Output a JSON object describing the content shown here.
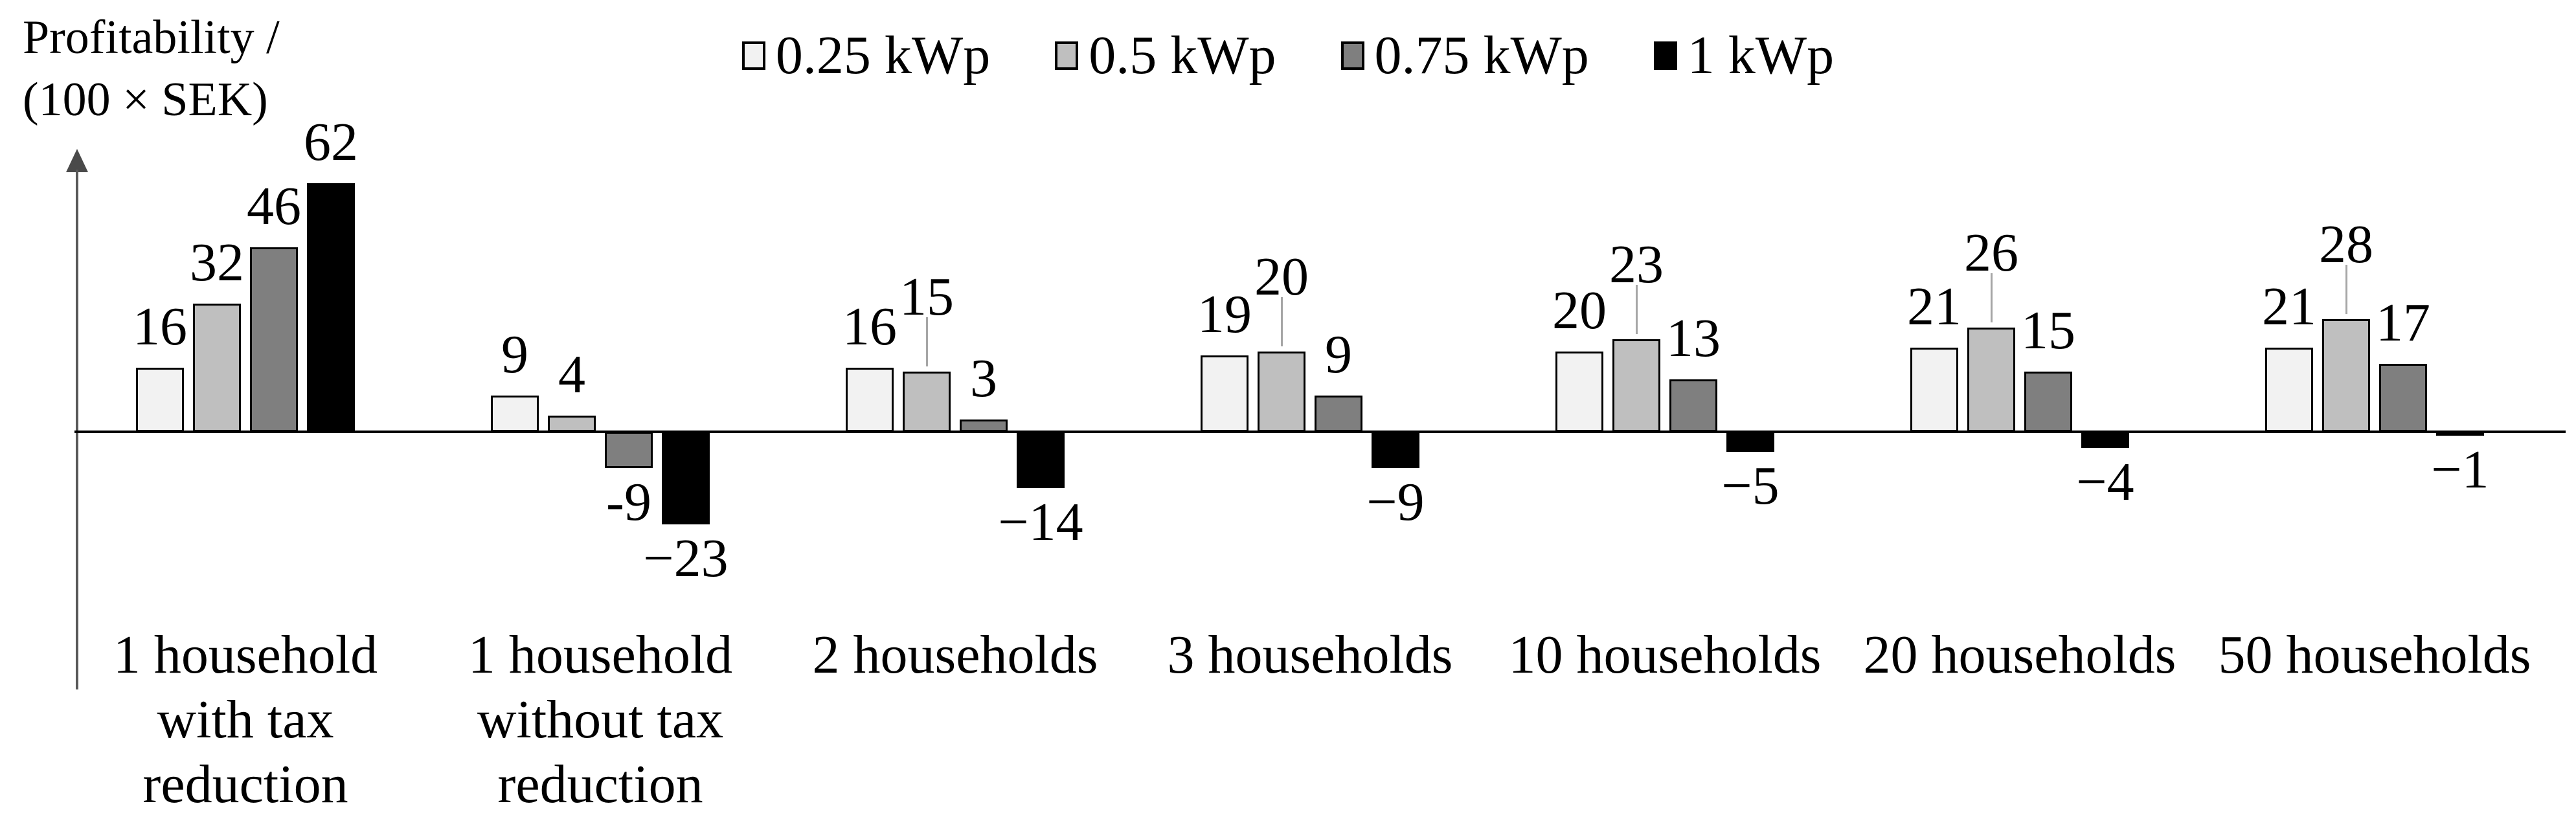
{
  "chart_data": {
    "type": "bar",
    "title": "",
    "y_axis_title_lines": [
      "Profitability /",
      "(100 × SEK)"
    ],
    "xlabel": "",
    "ylabel": "Profitability / (100 × SEK)",
    "ylim": [
      -25,
      65
    ],
    "grid": false,
    "legend_position": "top",
    "categories": [
      "1 household with tax reduction",
      "1 household without tax reduction",
      "2 households",
      "3 households",
      "10 households",
      "20 households",
      "50 households"
    ],
    "category_lines": [
      [
        "1 household",
        "with tax",
        "reduction"
      ],
      [
        "1 household",
        "without tax",
        "reduction"
      ],
      [
        "2 households"
      ],
      [
        "3 households"
      ],
      [
        "10 households"
      ],
      [
        "20 households"
      ],
      [
        "50 households"
      ]
    ],
    "series": [
      {
        "name": "0.25 kWp",
        "color": "#f2f2f2",
        "values": [
          16,
          9,
          16,
          19,
          20,
          21,
          21
        ]
      },
      {
        "name": "0.5 kWp",
        "color": "#bfbfbf",
        "values": [
          32,
          4,
          15,
          20,
          23,
          26,
          28
        ]
      },
      {
        "name": "0.75 kWp",
        "color": "#7f7f7f",
        "values": [
          46,
          -9,
          3,
          9,
          13,
          15,
          17
        ]
      },
      {
        "name": "1 kWp",
        "color": "#000000",
        "values": [
          62,
          -23,
          -14,
          -9,
          -5,
          -4,
          -1
        ]
      }
    ],
    "value_labels": [
      [
        "16",
        "32",
        "46",
        "62"
      ],
      [
        "9",
        "4",
        "-9",
        "−23"
      ],
      [
        "16",
        "15",
        "3",
        "−14"
      ],
      [
        "19",
        "20",
        "9",
        "−9"
      ],
      [
        "20",
        "23",
        "13",
        "−5"
      ],
      [
        "21",
        "26",
        "15",
        "−4"
      ],
      [
        "21",
        "28",
        "17",
        "−1"
      ]
    ],
    "leader_label_positions": [
      [
        2,
        1
      ],
      [
        3,
        1
      ],
      [
        4,
        1
      ],
      [
        5,
        1
      ],
      [
        6,
        1
      ]
    ],
    "colors": {
      "bar_border": "#000000",
      "axis_arrow": "#595959",
      "baseline": "#000000",
      "leader_line": "#a6a6a6",
      "background": "#ffffff"
    }
  }
}
